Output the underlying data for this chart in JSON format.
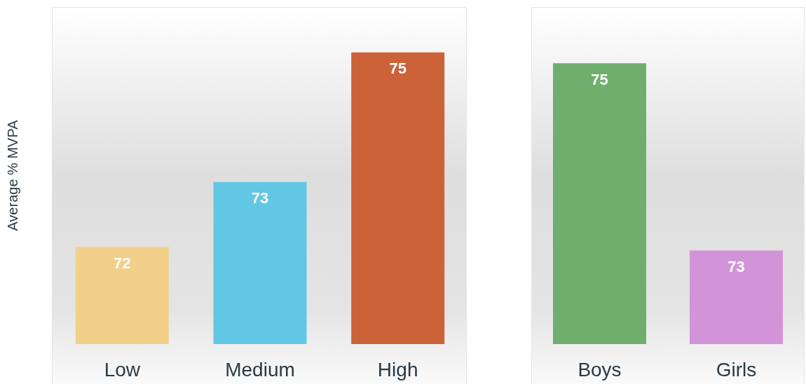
{
  "chart_data": [
    {
      "type": "bar",
      "ylabel": "Average % MVPA",
      "categories": [
        "Low",
        "Medium",
        "High"
      ],
      "values": [
        72,
        73,
        75
      ],
      "colors": [
        "#f2d08a",
        "#62c6e5",
        "#cc6338"
      ],
      "ylim": [
        70.5,
        75.7
      ],
      "data_labels": true,
      "tick_labels": "x"
    },
    {
      "type": "bar",
      "categories": [
        "Boys",
        "Girls"
      ],
      "values": [
        75,
        73
      ],
      "colors": [
        "#70ae6e",
        "#d393d8"
      ],
      "ylim": [
        72,
        75.6
      ],
      "data_labels": true,
      "tick_labels": "x"
    }
  ]
}
